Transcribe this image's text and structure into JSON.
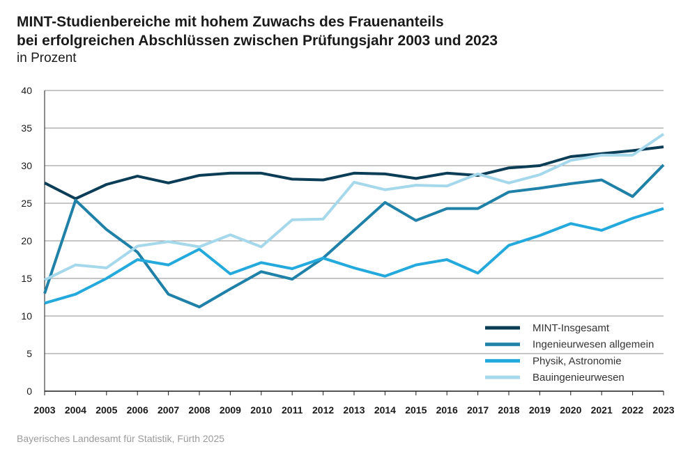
{
  "header": {
    "title_line1": "MINT-Studienbereiche mit hohem Zuwachs des Frauenanteils",
    "title_line2": "bei erfolgreichen Abschlüssen zwischen Prüfungsjahr 2003 und 2023",
    "subtitle": "in Prozent"
  },
  "footer": {
    "source": "Bayerisches Landesamt für Statistik, Fürth 2025"
  },
  "chart_data": {
    "type": "line",
    "title": "MINT-Studienbereiche mit hohem Zuwachs des Frauenanteils bei erfolgreichen Abschlüssen zwischen Prüfungsjahr 2003 und 2023",
    "subtitle": "in Prozent",
    "xlabel": "",
    "ylabel": "",
    "ylim": [
      0,
      40
    ],
    "yticks": [
      0,
      5,
      10,
      15,
      20,
      25,
      30,
      35,
      40
    ],
    "grid": "horizontal",
    "legend_position": "bottom-right",
    "categories": [
      "2003",
      "2004",
      "2005",
      "2006",
      "2007",
      "2008",
      "2009",
      "2010",
      "2011",
      "2012",
      "2013",
      "2014",
      "2015",
      "2016",
      "2017",
      "2018",
      "2019",
      "2020",
      "2021",
      "2022",
      "2023"
    ],
    "series": [
      {
        "name": "MINT-Insgesamt",
        "color": "#0b3d57",
        "values": [
          27.7,
          25.6,
          27.5,
          28.6,
          27.7,
          28.7,
          29.0,
          29.0,
          28.2,
          28.1,
          29.0,
          28.9,
          28.3,
          29.0,
          28.7,
          29.7,
          30.0,
          31.2,
          31.6,
          32.0,
          32.5
        ]
      },
      {
        "name": "Ingenieurwesen allgemein",
        "color": "#1f80a8",
        "values": [
          13.0,
          25.4,
          21.5,
          18.5,
          12.9,
          11.2,
          13.6,
          15.9,
          14.9,
          17.7,
          21.4,
          25.1,
          22.7,
          24.3,
          24.3,
          26.5,
          27.0,
          27.6,
          28.1,
          25.9,
          30.1
        ]
      },
      {
        "name": "Physik, Astronomie",
        "color": "#24a9dc",
        "values": [
          11.7,
          12.9,
          15.0,
          17.5,
          16.8,
          18.9,
          15.6,
          17.1,
          16.3,
          17.7,
          16.4,
          15.3,
          16.8,
          17.5,
          15.7,
          19.4,
          20.7,
          22.3,
          21.4,
          23.0,
          24.3
        ]
      },
      {
        "name": "Bauingenieurwesen",
        "color": "#a6d8ec",
        "values": [
          14.8,
          16.8,
          16.4,
          19.3,
          19.9,
          19.2,
          20.8,
          19.2,
          22.8,
          22.9,
          27.8,
          26.8,
          27.4,
          27.3,
          28.9,
          27.7,
          28.8,
          30.7,
          31.4,
          31.4,
          34.2
        ]
      }
    ]
  }
}
